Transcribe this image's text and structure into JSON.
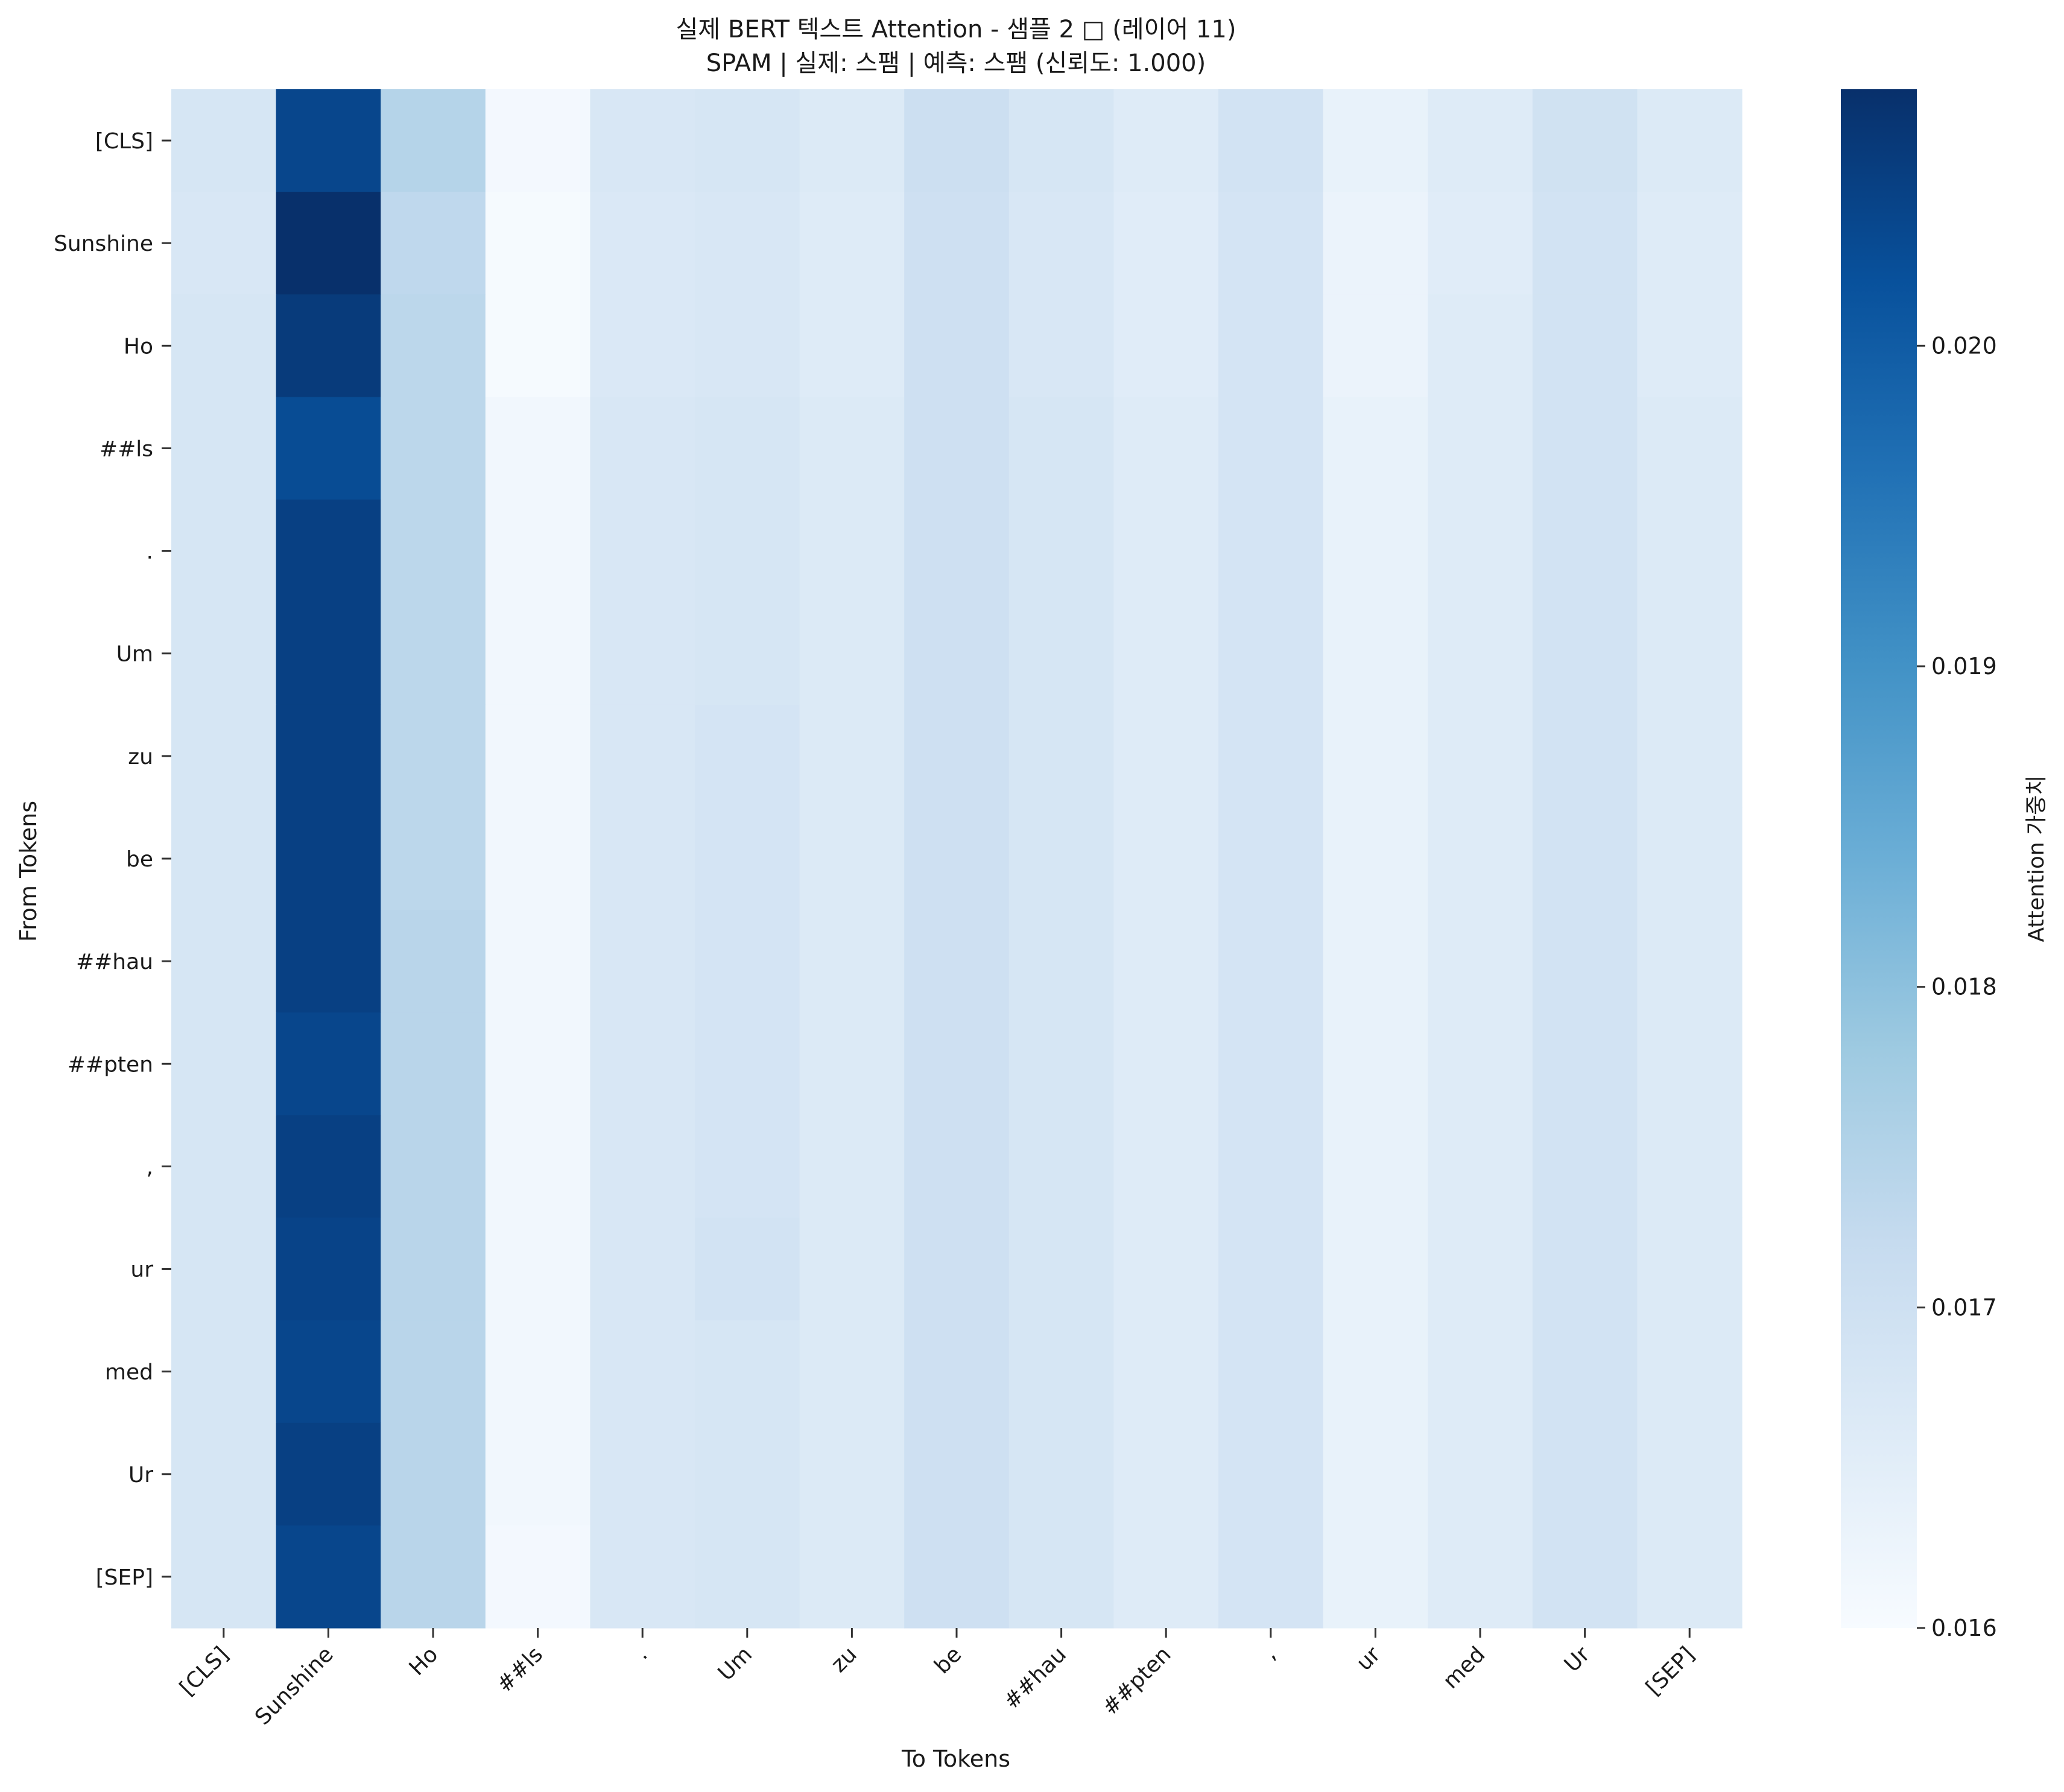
{
  "chart_data": {
    "type": "heatmap",
    "title_line1": "실제 BERT 텍스트 Attention - 샘플 2 □ (레이어 11)",
    "title_line2": "SPAM | 실제: 스팸 | 예측: 스팸 (신뢰도: 1.000)",
    "xlabel": "To Tokens",
    "ylabel": "From Tokens",
    "colorbar_label": "Attention 가중치",
    "colormap": "Blues",
    "vmin": 0.016,
    "vmax": 0.0208,
    "colorbar_ticks": [
      "0.016",
      "0.017",
      "0.018",
      "0.019",
      "0.020"
    ],
    "tokens": [
      "[CLS]",
      "Sunshine",
      "Ho",
      "##ls",
      ".",
      "Um",
      "zu",
      "be",
      "##hau",
      "##pten",
      ",",
      "ur",
      "med",
      "Ur",
      "[SEP]"
    ],
    "matrix": [
      [
        0.0168,
        0.0204,
        0.01745,
        0.0161,
        0.01675,
        0.0168,
        0.01665,
        0.01705,
        0.0168,
        0.0166,
        0.0169,
        0.01635,
        0.0166,
        0.01695,
        0.01665
      ],
      [
        0.01675,
        0.0208,
        0.0173,
        0.01605,
        0.0167,
        0.01675,
        0.0166,
        0.017,
        0.01675,
        0.01655,
        0.01685,
        0.0163,
        0.01655,
        0.0169,
        0.0166
      ],
      [
        0.0168,
        0.0206,
        0.01735,
        0.01605,
        0.0167,
        0.01675,
        0.0166,
        0.017,
        0.01675,
        0.01655,
        0.01685,
        0.0163,
        0.0166,
        0.0169,
        0.0166
      ],
      [
        0.0168,
        0.0203,
        0.01735,
        0.01615,
        0.01675,
        0.0168,
        0.01665,
        0.017,
        0.0168,
        0.0166,
        0.01685,
        0.01635,
        0.0166,
        0.0169,
        0.01665
      ],
      [
        0.0168,
        0.0205,
        0.01735,
        0.01615,
        0.01675,
        0.0168,
        0.01665,
        0.017,
        0.0168,
        0.0166,
        0.01685,
        0.01635,
        0.0166,
        0.0169,
        0.01665
      ],
      [
        0.0168,
        0.0205,
        0.01735,
        0.01615,
        0.01675,
        0.0168,
        0.01665,
        0.017,
        0.0168,
        0.0166,
        0.01685,
        0.01635,
        0.0166,
        0.0169,
        0.01665
      ],
      [
        0.0168,
        0.0205,
        0.01735,
        0.01615,
        0.01675,
        0.01685,
        0.01665,
        0.017,
        0.0168,
        0.0166,
        0.01685,
        0.01635,
        0.0166,
        0.0169,
        0.01665
      ],
      [
        0.0168,
        0.0205,
        0.01735,
        0.01615,
        0.01675,
        0.01685,
        0.01665,
        0.017,
        0.0168,
        0.0166,
        0.01685,
        0.01635,
        0.0166,
        0.0169,
        0.01665
      ],
      [
        0.0168,
        0.0205,
        0.0174,
        0.01615,
        0.01675,
        0.01685,
        0.01665,
        0.017,
        0.0168,
        0.0166,
        0.01685,
        0.01635,
        0.0166,
        0.0169,
        0.01665
      ],
      [
        0.0168,
        0.0204,
        0.0174,
        0.01615,
        0.01675,
        0.01685,
        0.01665,
        0.017,
        0.0168,
        0.0166,
        0.01685,
        0.01635,
        0.0166,
        0.0169,
        0.01665
      ],
      [
        0.0168,
        0.0205,
        0.0174,
        0.01615,
        0.01675,
        0.01685,
        0.01665,
        0.017,
        0.0168,
        0.0166,
        0.01685,
        0.01635,
        0.0166,
        0.0169,
        0.01665
      ],
      [
        0.0168,
        0.02045,
        0.0174,
        0.01615,
        0.01675,
        0.0169,
        0.01665,
        0.017,
        0.0168,
        0.0166,
        0.01685,
        0.01635,
        0.0166,
        0.0169,
        0.01665
      ],
      [
        0.0168,
        0.0204,
        0.0174,
        0.01615,
        0.01675,
        0.0168,
        0.01665,
        0.017,
        0.0168,
        0.0166,
        0.01685,
        0.01635,
        0.0166,
        0.0169,
        0.01665
      ],
      [
        0.0168,
        0.0205,
        0.0174,
        0.01615,
        0.01675,
        0.0168,
        0.01665,
        0.017,
        0.0168,
        0.0166,
        0.01685,
        0.01635,
        0.0166,
        0.0169,
        0.01665
      ],
      [
        0.0168,
        0.0204,
        0.0174,
        0.0161,
        0.01675,
        0.0168,
        0.01665,
        0.017,
        0.0168,
        0.0166,
        0.01685,
        0.01635,
        0.0166,
        0.0169,
        0.01665
      ]
    ]
  }
}
